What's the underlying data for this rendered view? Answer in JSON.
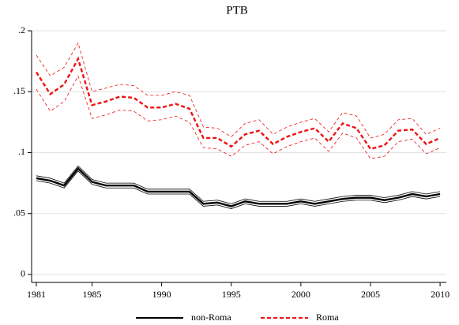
{
  "chart_data": {
    "type": "line",
    "title": "PTB",
    "x": [
      1981,
      1982,
      1983,
      1984,
      1985,
      1986,
      1987,
      1988,
      1989,
      1990,
      1991,
      1992,
      1993,
      1994,
      1995,
      1996,
      1997,
      1998,
      1999,
      2000,
      2001,
      2002,
      2003,
      2004,
      2005,
      2006,
      2007,
      2008,
      2009,
      2010
    ],
    "series": [
      {
        "name": "non-Roma",
        "color": "#000000",
        "dash": false,
        "values": [
          0.079,
          0.077,
          0.073,
          0.087,
          0.076,
          0.073,
          0.073,
          0.073,
          0.068,
          0.068,
          0.068,
          0.068,
          0.058,
          0.059,
          0.056,
          0.06,
          0.058,
          0.058,
          0.058,
          0.06,
          0.058,
          0.06,
          0.062,
          0.063,
          0.063,
          0.061,
          0.063,
          0.066,
          0.064,
          0.066
        ],
        "upper": [
          0.081,
          0.079,
          0.075,
          0.089,
          0.078,
          0.075,
          0.075,
          0.075,
          0.07,
          0.07,
          0.07,
          0.07,
          0.06,
          0.061,
          0.058,
          0.062,
          0.06,
          0.06,
          0.06,
          0.062,
          0.06,
          0.062,
          0.064,
          0.065,
          0.065,
          0.063,
          0.065,
          0.068,
          0.066,
          0.068
        ],
        "lower": [
          0.077,
          0.075,
          0.071,
          0.085,
          0.074,
          0.071,
          0.071,
          0.071,
          0.066,
          0.066,
          0.066,
          0.066,
          0.056,
          0.057,
          0.054,
          0.058,
          0.056,
          0.056,
          0.056,
          0.058,
          0.056,
          0.058,
          0.06,
          0.061,
          0.061,
          0.059,
          0.061,
          0.064,
          0.062,
          0.064
        ]
      },
      {
        "name": "Roma",
        "color": "#ee1111",
        "dash": true,
        "values": [
          0.166,
          0.148,
          0.156,
          0.177,
          0.139,
          0.142,
          0.146,
          0.145,
          0.137,
          0.137,
          0.14,
          0.136,
          0.112,
          0.112,
          0.105,
          0.115,
          0.118,
          0.107,
          0.113,
          0.117,
          0.12,
          0.109,
          0.124,
          0.12,
          0.103,
          0.106,
          0.118,
          0.119,
          0.107,
          0.112
        ],
        "upper": [
          0.18,
          0.163,
          0.17,
          0.19,
          0.15,
          0.153,
          0.156,
          0.155,
          0.147,
          0.147,
          0.15,
          0.147,
          0.121,
          0.12,
          0.113,
          0.124,
          0.127,
          0.115,
          0.121,
          0.125,
          0.128,
          0.117,
          0.133,
          0.13,
          0.112,
          0.115,
          0.127,
          0.128,
          0.115,
          0.12
        ],
        "lower": [
          0.152,
          0.134,
          0.142,
          0.163,
          0.128,
          0.131,
          0.135,
          0.134,
          0.126,
          0.127,
          0.13,
          0.125,
          0.104,
          0.103,
          0.097,
          0.106,
          0.109,
          0.099,
          0.105,
          0.109,
          0.112,
          0.101,
          0.116,
          0.112,
          0.095,
          0.097,
          0.109,
          0.111,
          0.099,
          0.104
        ]
      }
    ],
    "xlim": [
      1980.66,
      2010.45
    ],
    "xticks": [
      1981,
      1985,
      1990,
      1995,
      2000,
      2005,
      2010
    ],
    "ylim": [
      -0.0065,
      0.2
    ],
    "yticks": [
      {
        "value": 0,
        "label": "0"
      },
      {
        "value": 0.05,
        "label": ".05"
      },
      {
        "value": 0.1,
        "label": ".1"
      },
      {
        "value": 0.15,
        "label": ".15"
      },
      {
        "value": 0.2,
        "label": ".2"
      }
    ],
    "grid": true,
    "legend": "bottom"
  }
}
